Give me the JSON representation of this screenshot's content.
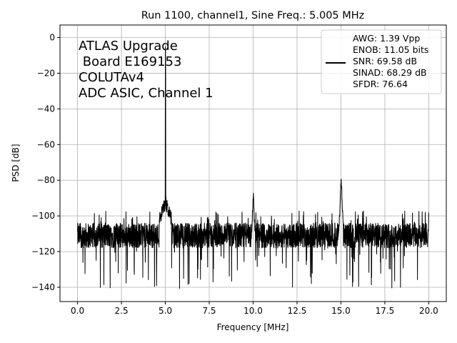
{
  "chart_data": {
    "type": "line",
    "title": "Run 1100, channel1, Sine Freq.: 5.005 MHz",
    "xlabel": "Frequency [MHz]",
    "ylabel": "PSD [dB]",
    "xlim": [
      -1.0,
      21.0
    ],
    "ylim": [
      -148,
      7
    ],
    "xticks": [
      0.0,
      2.5,
      5.0,
      7.5,
      10.0,
      12.5,
      15.0,
      17.5,
      20.0
    ],
    "xtick_labels": [
      "0.0",
      "2.5",
      "5.0",
      "7.5",
      "10.0",
      "12.5",
      "15.0",
      "17.5",
      "20.0"
    ],
    "yticks": [
      0,
      -20,
      -40,
      -60,
      -80,
      -100,
      -120,
      -140
    ],
    "ytick_labels": [
      "0",
      "−20",
      "−40",
      "−60",
      "−80",
      "−100",
      "−120",
      "−140"
    ],
    "grid": true,
    "line_color": "#000000",
    "annotation_lines": [
      "ATLAS Upgrade",
      " Board E169153",
      "COLUTAv4",
      "ADC ASIC, Channel 1"
    ],
    "legend": {
      "placement": "top-right",
      "lines": [
        "AWG: 1.39 Vpp",
        "ENOB: 11.05 bits",
        "SNR: 69.58 dB",
        "SINAD: 68.29 dB",
        "SFDR: 76.64"
      ]
    },
    "series": [
      {
        "noise_floor_db": -111,
        "noise_min_db": -141,
        "noise_max_db": -97,
        "peaks": [
          {
            "x": 5.005,
            "y": 0
          },
          {
            "x": 5.0,
            "y": -88
          },
          {
            "x": 10.01,
            "y": -85
          },
          {
            "x": 15.015,
            "y": -76
          },
          {
            "x": 20.0,
            "y": -98
          }
        ]
      }
    ]
  }
}
